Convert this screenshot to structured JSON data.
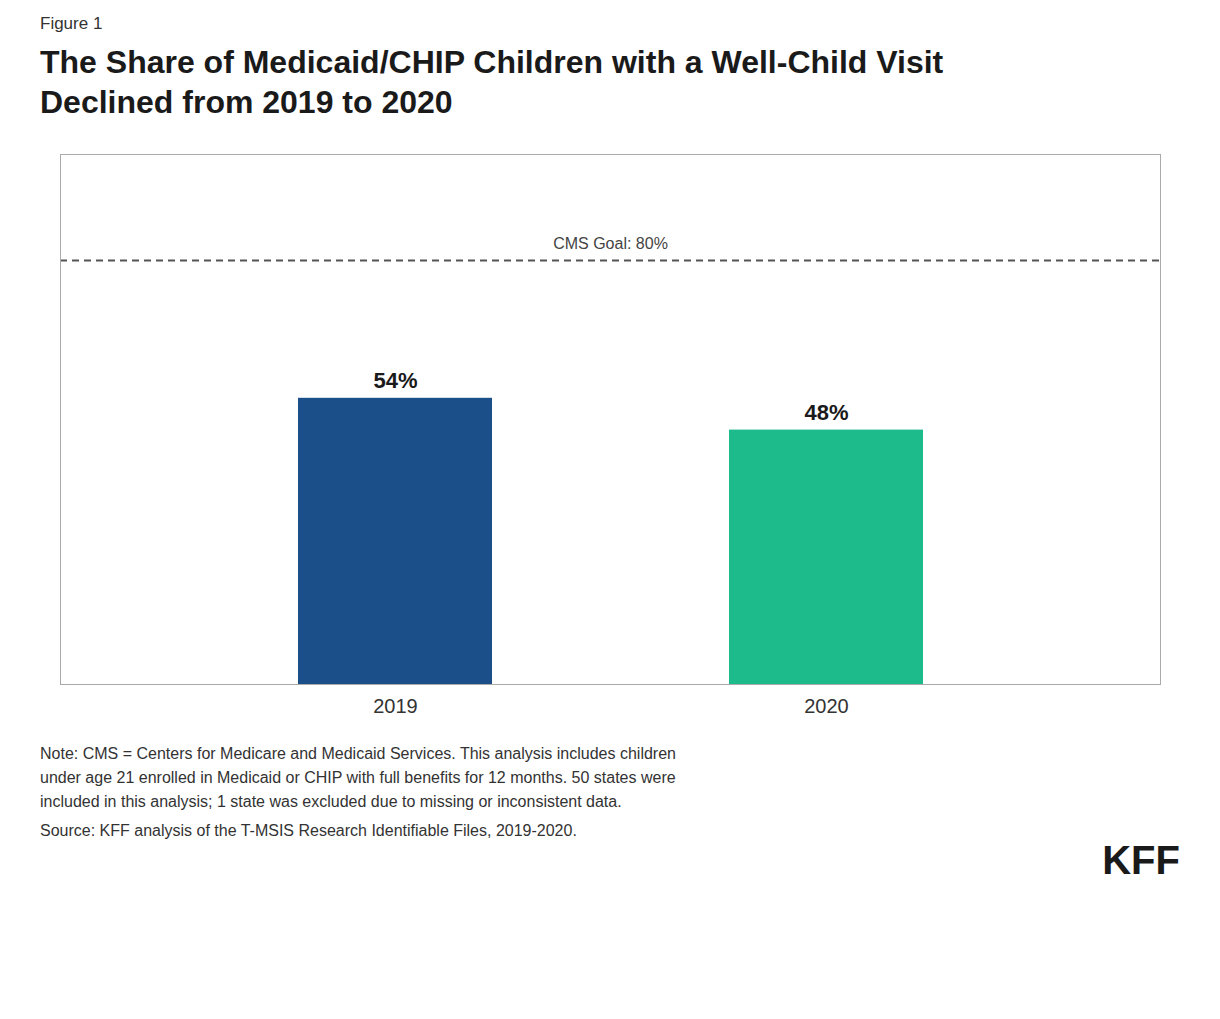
{
  "chart_data": {
    "type": "bar",
    "figure_label": "Figure 1",
    "title": "The Share of Medicaid/CHIP Children with a Well-Child Visit\nDeclined from 2019 to 2020",
    "categories": [
      "2019",
      "2020"
    ],
    "values": [
      54,
      48
    ],
    "value_labels": [
      "54%",
      "48%"
    ],
    "data_labels": true,
    "colors": [
      "#1b4f8a",
      "#1dba8c"
    ],
    "ylim": [
      0,
      100
    ],
    "tick_labels": "x",
    "grid": false,
    "annotations": [
      {
        "y": 80,
        "label": "CMS Goal: 80%",
        "line_style": "dashed",
        "color": "#555555"
      }
    ],
    "note": "Note: CMS = Centers for Medicare and Medicaid Services. This analysis includes children\nunder age 21 enrolled in Medicaid or CHIP with full benefits for 12 months. 50 states were\nincluded in this analysis; 1 state was excluded due to missing or inconsistent data.",
    "source": "Source: KFF analysis of the T-MSIS Research Identifiable Files, 2019-2020.",
    "footer_label": "KFF"
  }
}
